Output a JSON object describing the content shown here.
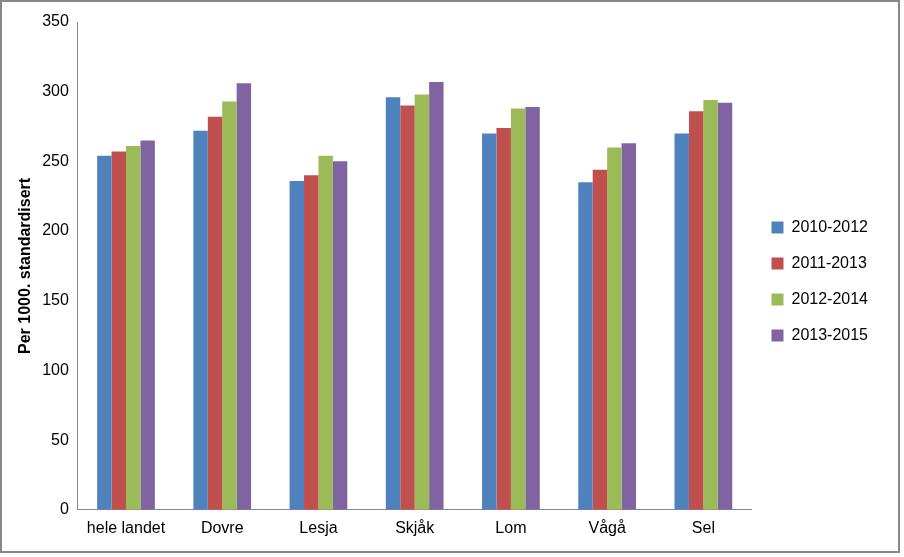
{
  "chart_data": {
    "type": "bar",
    "y_label": "Per 1000. standardisert",
    "categories": [
      "hele landet",
      "Dovre",
      "Lesja",
      "Skjåk",
      "Lom",
      "Vågå",
      "Sel"
    ],
    "series": [
      {
        "name": "2010-2012",
        "color": "#4f81bd",
        "values": [
          254,
          272,
          236,
          296,
          270,
          235,
          270
        ]
      },
      {
        "name": "2011-2013",
        "color": "#c0504d",
        "values": [
          257,
          282,
          240,
          290,
          274,
          244,
          286
        ]
      },
      {
        "name": "2012-2014",
        "color": "#9bbb59",
        "values": [
          261,
          293,
          254,
          298,
          288,
          260,
          294
        ]
      },
      {
        "name": "2013-2015",
        "color": "#8064a2",
        "values": [
          265,
          306,
          250,
          307,
          289,
          263,
          292
        ]
      }
    ],
    "ylim": [
      0,
      350
    ],
    "yticks": [
      0,
      50,
      100,
      150,
      200,
      250,
      300,
      350
    ],
    "grid": false,
    "legend": "right"
  }
}
